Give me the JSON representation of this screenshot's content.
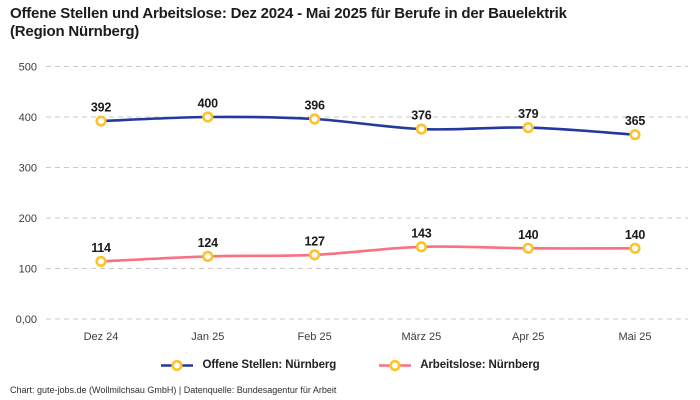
{
  "title": {
    "lines": [
      "Offene Stellen und Arbeitslose: Dez 2024 - Mai 2025 für Berufe in der Bauelektrik",
      "(Region Nürnberg)"
    ]
  },
  "footer": {
    "text": "Chart: gute-jobs.de (Wollmilchsau GmbH) | Datenquelle: Bundesagentur für Arbeit"
  },
  "colors": {
    "series_blue": "#24399e",
    "series_pink": "#f97183",
    "marker_ring": "#fcc32a",
    "marker_fill": "#ffffff",
    "gridline": "#c9c9c9"
  },
  "chart_data": {
    "type": "line",
    "title": "Offene Stellen und Arbeitslose: Dez 2024 - Mai 2025 für Berufe in der Bauelektrik (Region Nürnberg)",
    "categories": [
      "Dez 24",
      "Jan 25",
      "Feb 25",
      "März 25",
      "Apr 25",
      "Mai 25"
    ],
    "series": [
      {
        "name": "Offene Stellen: Nürnberg",
        "values": [
          392,
          400,
          396,
          376,
          379,
          365
        ],
        "color": "#24399e"
      },
      {
        "name": "Arbeitslose: Nürnberg",
        "values": [
          114,
          124,
          127,
          143,
          140,
          140
        ],
        "color": "#f97183"
      }
    ],
    "yticks": {
      "values": [
        500,
        400,
        300,
        200,
        100,
        0
      ],
      "labels": [
        "500",
        "400",
        "300",
        "200",
        "100",
        "0,00"
      ]
    },
    "ylim": [
      0,
      533
    ],
    "grid": "dashed-horizontal",
    "legend_position": "bottom",
    "data_labels": true
  }
}
